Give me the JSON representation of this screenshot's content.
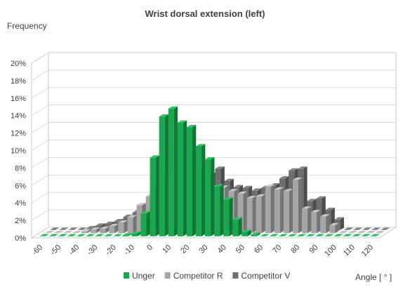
{
  "chart_data": {
    "type": "bar",
    "title": "Wrist dorsal extension (left)",
    "ylabel": "Frequency",
    "xlabel": "Angle [ ° ]",
    "ylim": [
      0,
      20
    ],
    "y_ticks": [
      "0%",
      "2%",
      "4%",
      "6%",
      "8%",
      "10%",
      "12%",
      "14%",
      "16%",
      "18%",
      "20%"
    ],
    "x_ticks": [
      "-60",
      "-50",
      "-40",
      "-30",
      "-20",
      "-10",
      "0",
      "10",
      "20",
      "30",
      "40",
      "50",
      "60",
      "70",
      "80",
      "90",
      "100",
      "110",
      "120"
    ],
    "grid": true,
    "legend_position": "bottom",
    "x": [
      -60,
      -55,
      -50,
      -45,
      -40,
      -35,
      -30,
      -25,
      -20,
      -15,
      -10,
      -5,
      0,
      5,
      10,
      15,
      20,
      25,
      30,
      35,
      40,
      45,
      50,
      55,
      60,
      65,
      70,
      75,
      80,
      85,
      90,
      95,
      100,
      105,
      110,
      115,
      120
    ],
    "series": [
      {
        "name": "Unger",
        "color": "#1aa84f",
        "values": [
          0,
          0,
          0,
          0,
          0,
          0,
          0,
          0,
          0,
          0.1,
          0.3,
          2.6,
          9.0,
          13.7,
          14.6,
          13.0,
          12.5,
          10.3,
          8.8,
          5.7,
          4.2,
          1.9,
          0.5,
          0.2,
          0,
          0,
          0,
          0,
          0,
          0,
          0,
          0,
          0,
          0,
          0,
          0,
          0
        ]
      },
      {
        "name": "Competitor R",
        "color": "#a6a6a6",
        "values": [
          0,
          0,
          0,
          0,
          0.2,
          0.4,
          0.5,
          0.8,
          1.2,
          1.8,
          3.2,
          4.2,
          5.2,
          6.6,
          6.8,
          6.9,
          6.8,
          6.3,
          5.2,
          5.2,
          4.8,
          4.5,
          4.0,
          4.2,
          5.3,
          5.0,
          4.8,
          6.1,
          2.8,
          2.4,
          1.9,
          0.9,
          0,
          0,
          0,
          0,
          0
        ]
      },
      {
        "name": "Competitor V",
        "color": "#6e6e6e",
        "values": [
          0,
          0,
          0,
          0,
          0.2,
          0.5,
          0.7,
          1.0,
          1.5,
          2.0,
          2.8,
          3.6,
          4.8,
          5.5,
          6.0,
          6.3,
          6.5,
          6.3,
          7.0,
          5.6,
          4.9,
          4.8,
          4.5,
          4.8,
          5.1,
          5.9,
          6.8,
          7.0,
          3.3,
          3.6,
          2.3,
          1.2,
          0,
          0,
          0,
          0,
          0
        ]
      }
    ]
  }
}
